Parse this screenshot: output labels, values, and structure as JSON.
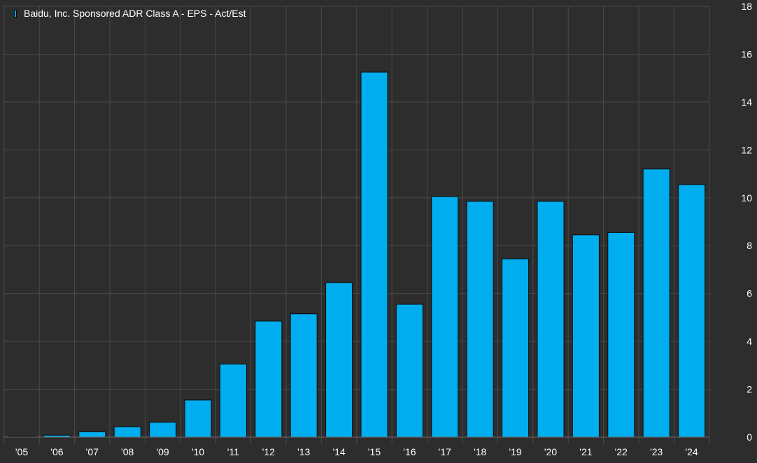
{
  "chart_data": {
    "type": "bar",
    "legend": "Baidu, Inc. Sponsored ADR Class A - EPS - Act/Est",
    "legend_position": "top-left",
    "categories": [
      "'05",
      "'06",
      "'07",
      "'08",
      "'09",
      "'10",
      "'11",
      "'12",
      "'13",
      "'14",
      "'15",
      "'16",
      "'17",
      "'18",
      "'19",
      "'20",
      "'21",
      "'22",
      "'23",
      "'24"
    ],
    "series": [
      {
        "name": "Baidu, Inc. Sponsored ADR Class A - EPS - Act/Est",
        "values": [
          0.02,
          0.08,
          0.22,
          0.43,
          0.62,
          1.55,
          3.05,
          4.85,
          5.15,
          6.45,
          15.25,
          5.55,
          10.05,
          9.85,
          7.45,
          9.85,
          8.45,
          8.55,
          11.2,
          10.55
        ]
      }
    ],
    "yticks": [
      "0",
      "2",
      "4",
      "6",
      "8",
      "10",
      "12",
      "14",
      "16",
      "18"
    ],
    "ylim": [
      0,
      18
    ],
    "y_axis_side": "right",
    "grid": true,
    "colors": {
      "background": "#2d2d2d",
      "bar": "#00aeef",
      "bar_edge": "#0b0b0b",
      "grid": "#4a4a4a",
      "text": "#ffffff"
    }
  }
}
